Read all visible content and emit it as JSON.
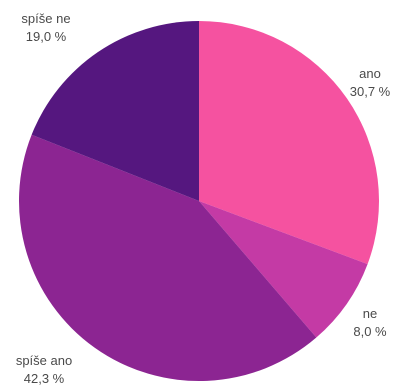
{
  "chart_data": {
    "type": "pie",
    "start_angle_deg": 0,
    "direction": "clockwise",
    "slices": [
      {
        "label": "ano",
        "value": 30.7,
        "value_label": "30,7 %",
        "color": "#f552a0"
      },
      {
        "label": "ne",
        "value": 8.0,
        "value_label": "8,0 %",
        "color": "#c43aa5"
      },
      {
        "label": "spíše ano",
        "value": 42.3,
        "value_label": "42,3 %",
        "color": "#8c2592"
      },
      {
        "label": "spíše ne",
        "value": 19.0,
        "value_label": "19,0 %",
        "color": "#55177f"
      }
    ]
  }
}
